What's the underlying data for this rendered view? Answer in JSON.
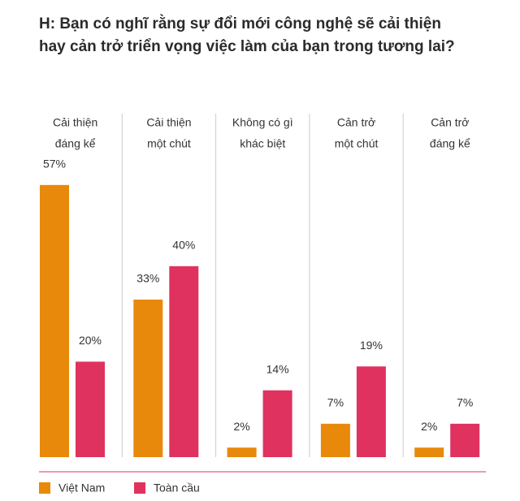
{
  "chart_data": {
    "type": "bar",
    "title": [
      "H: Bạn có nghĩ rằng sự đổi mới công nghệ sẽ cải thiện",
      "hay cản trở triển vọng việc làm của bạn trong tương lai?"
    ],
    "categories": [
      [
        "Cải thiện",
        "đáng kể"
      ],
      [
        "Cải thiện",
        "một chút"
      ],
      [
        "Không có gì",
        "khác biệt"
      ],
      [
        "Cản trở",
        "một chút"
      ],
      [
        "Cản trở",
        "đáng kể"
      ]
    ],
    "series": [
      {
        "name": "Việt Nam",
        "color": "#e8890c",
        "values": [
          57,
          33,
          2,
          7,
          2
        ],
        "value_labels": [
          "57%",
          "33%",
          "2%",
          "7%",
          "2%"
        ]
      },
      {
        "name": "Toàn cầu",
        "color": "#e0325f",
        "values": [
          20,
          40,
          14,
          19,
          7
        ],
        "value_labels": [
          "20%",
          "40%",
          "14%",
          "19%",
          "7%"
        ]
      }
    ]
  }
}
